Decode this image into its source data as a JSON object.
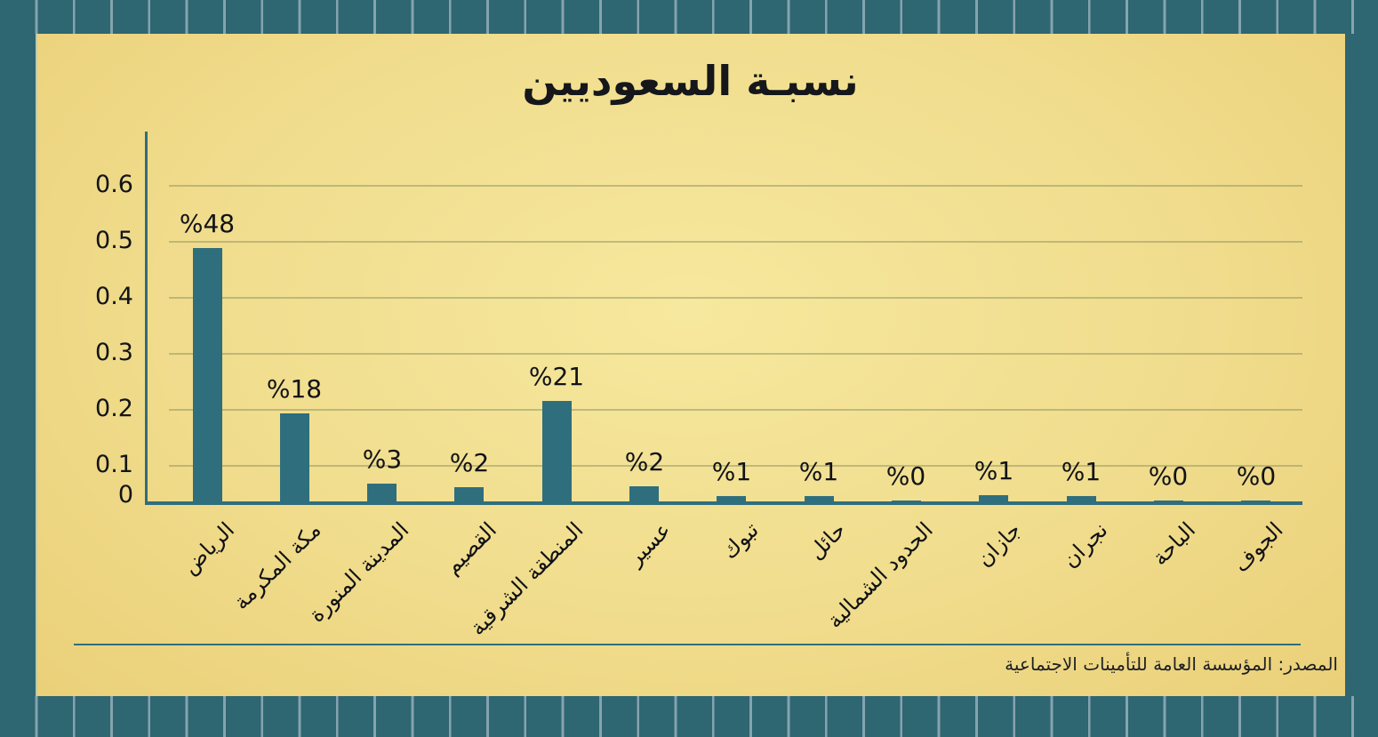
{
  "title": "نسبـة السعوديين",
  "source_text": "المصدر: المؤسسة العامة للتأمينات الاجتماعية",
  "colors": {
    "frame_teal": "#2e6671",
    "frame_stripe": "#85a3b0",
    "bar": "#2f6e7d",
    "axis": "#2f6e7d",
    "gridline": "#8c925f",
    "panel_center": "#f6e89e",
    "panel_edge": "#e4c267",
    "text": "#15171b"
  },
  "chart_data": {
    "type": "bar",
    "title": "نسبـة السعوديين",
    "categories": [
      "الرياض",
      "مكة المكرمة",
      "المدينة المنورة",
      "القصيم",
      "المنطقة الشرقية",
      "عسير",
      "تبوك",
      "حائل",
      "الحدود الشمالية",
      "جازان",
      "نجران",
      "الباحة",
      "الجوف"
    ],
    "values_pct": [
      48,
      18,
      3,
      2,
      21,
      2,
      1,
      1,
      0,
      1,
      1,
      0,
      0
    ],
    "bar_labels": [
      "%48",
      "%18",
      "%3",
      "%2",
      "%21",
      "%2",
      "%1",
      "%1",
      "%0",
      "%1",
      "%1",
      "%0",
      "%0"
    ],
    "visual_fractions": [
      0.455,
      0.16,
      0.035,
      0.029,
      0.183,
      0.03,
      0.013,
      0.013,
      0.005,
      0.014,
      0.012,
      0.005,
      0.005
    ],
    "y_ticks": [
      {
        "label": "0.6",
        "value": 0.6
      },
      {
        "label": "0.5",
        "value": 0.5
      },
      {
        "label": "0.4",
        "value": 0.4
      },
      {
        "label": "0.3",
        "value": 0.3
      },
      {
        "label": "0.2",
        "value": 0.2
      },
      {
        "label": "0.1",
        "value": 0.1
      },
      {
        "label": "0",
        "value": 0
      }
    ],
    "ylim": [
      0,
      0.66
    ],
    "grid": true,
    "legend": null,
    "xlabel": "",
    "ylabel": "",
    "source": "المصدر: المؤسسة العامة للتأمينات الاجتماعية"
  }
}
